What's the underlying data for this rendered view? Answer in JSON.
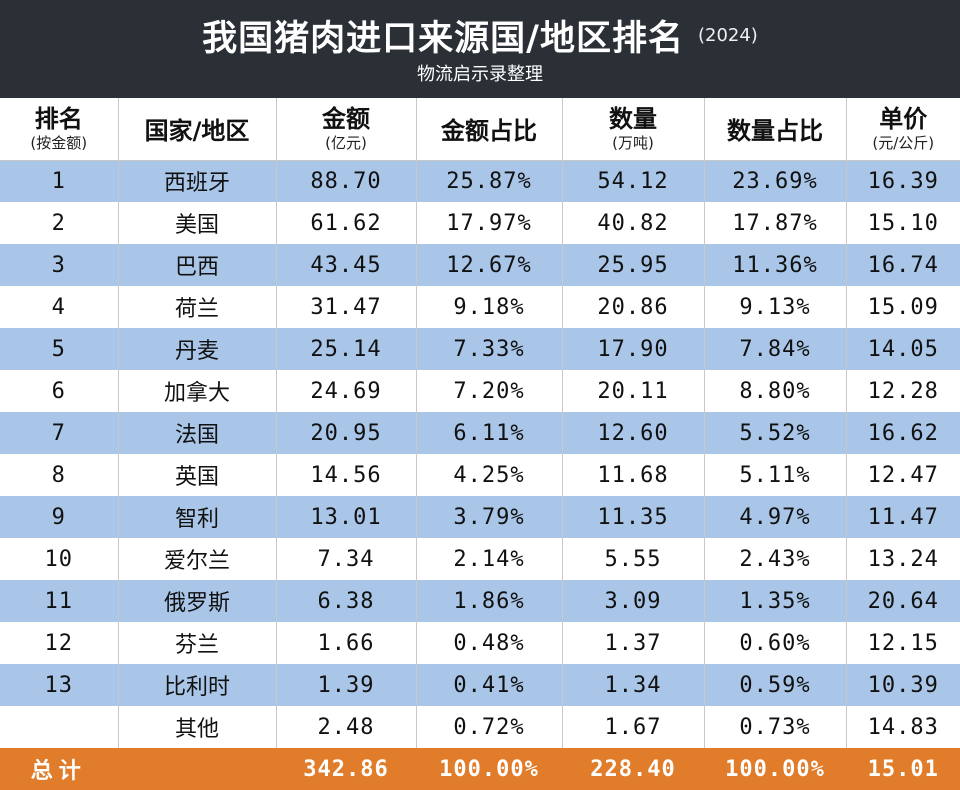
{
  "header": {
    "title": "我国猪肉进口来源国/地区排名",
    "year": "(2024)",
    "subtitle": "物流启示录整理"
  },
  "columns": [
    {
      "main": "排名",
      "sub": "(按金额)"
    },
    {
      "main": "国家/地区",
      "sub": ""
    },
    {
      "main": "金额",
      "sub": "(亿元)"
    },
    {
      "main": "金额占比",
      "sub": ""
    },
    {
      "main": "数量",
      "sub": "(万吨)"
    },
    {
      "main": "数量占比",
      "sub": ""
    },
    {
      "main": "单价",
      "sub": "(元/公斤)"
    }
  ],
  "rows": [
    [
      "1",
      "西班牙",
      "88.70",
      "25.87%",
      "54.12",
      "23.69%",
      "16.39"
    ],
    [
      "2",
      "美国",
      "61.62",
      "17.97%",
      "40.82",
      "17.87%",
      "15.10"
    ],
    [
      "3",
      "巴西",
      "43.45",
      "12.67%",
      "25.95",
      "11.36%",
      "16.74"
    ],
    [
      "4",
      "荷兰",
      "31.47",
      "9.18%",
      "20.86",
      "9.13%",
      "15.09"
    ],
    [
      "5",
      "丹麦",
      "25.14",
      "7.33%",
      "17.90",
      "7.84%",
      "14.05"
    ],
    [
      "6",
      "加拿大",
      "24.69",
      "7.20%",
      "20.11",
      "8.80%",
      "12.28"
    ],
    [
      "7",
      "法国",
      "20.95",
      "6.11%",
      "12.60",
      "5.52%",
      "16.62"
    ],
    [
      "8",
      "英国",
      "14.56",
      "4.25%",
      "11.68",
      "5.11%",
      "12.47"
    ],
    [
      "9",
      "智利",
      "13.01",
      "3.79%",
      "11.35",
      "4.97%",
      "11.47"
    ],
    [
      "10",
      "爱尔兰",
      "7.34",
      "2.14%",
      "5.55",
      "2.43%",
      "13.24"
    ],
    [
      "11",
      "俄罗斯",
      "6.38",
      "1.86%",
      "3.09",
      "1.35%",
      "20.64"
    ],
    [
      "12",
      "芬兰",
      "1.66",
      "0.48%",
      "1.37",
      "0.60%",
      "12.15"
    ],
    [
      "13",
      "比利时",
      "1.39",
      "0.41%",
      "1.34",
      "0.59%",
      "10.39"
    ],
    [
      "",
      "其他",
      "2.48",
      "0.72%",
      "1.67",
      "0.73%",
      "14.83"
    ]
  ],
  "total": [
    "总计",
    "",
    "342.86",
    "100.00%",
    "228.40",
    "100.00%",
    "15.01"
  ],
  "colors": {
    "header_bg": "#2a3036",
    "row_blue": "#a9c6e8",
    "total_bg": "#e07c2a"
  }
}
